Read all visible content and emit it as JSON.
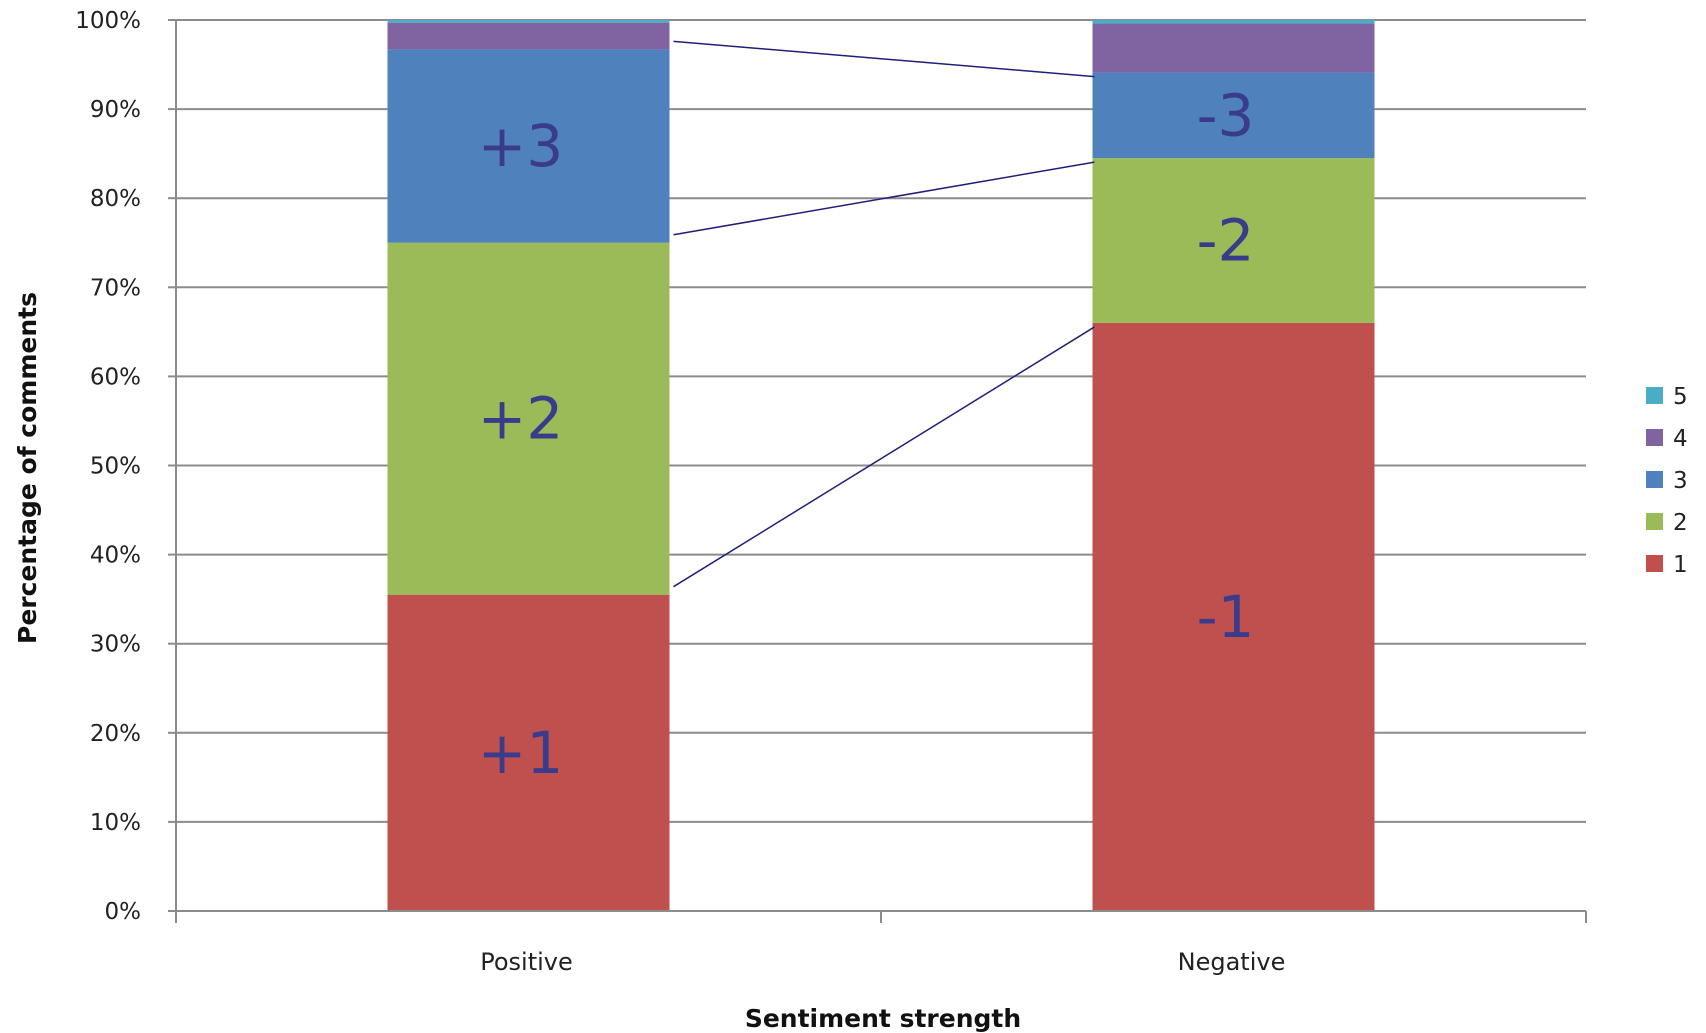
{
  "chart_data": {
    "type": "bar",
    "stacked": true,
    "percent": true,
    "categories": [
      "Positive",
      "Negative"
    ],
    "series": [
      {
        "name": "1",
        "color": "#c0504d",
        "values": [
          35.5,
          66
        ],
        "labels": [
          "+1",
          "-1"
        ]
      },
      {
        "name": "2",
        "color": "#9bbb59",
        "values": [
          39.5,
          18.5
        ],
        "labels": [
          "+2",
          "-2"
        ]
      },
      {
        "name": "3",
        "color": "#4f81bd",
        "values": [
          21.7,
          9.6
        ],
        "labels": [
          "+3",
          "-3"
        ]
      },
      {
        "name": "4",
        "color": "#8064a2",
        "values": [
          3,
          5.5
        ],
        "labels": [
          "",
          ""
        ]
      },
      {
        "name": "5",
        "color": "#4bacc6",
        "values": [
          0.3,
          0.4
        ],
        "labels": [
          "",
          ""
        ]
      }
    ],
    "xlabel": "Sentiment strength",
    "ylabel": "Percentage of comments",
    "ylim": [
      0,
      100
    ],
    "yticks": [
      "0%",
      "10%",
      "20%",
      "30%",
      "40%",
      "50%",
      "60%",
      "70%",
      "80%",
      "90%",
      "100%"
    ],
    "grid": true,
    "legend_position": "right",
    "connector_lines": true,
    "label_color": "#3b3b8c",
    "connector_color": "#1f1f7a"
  }
}
